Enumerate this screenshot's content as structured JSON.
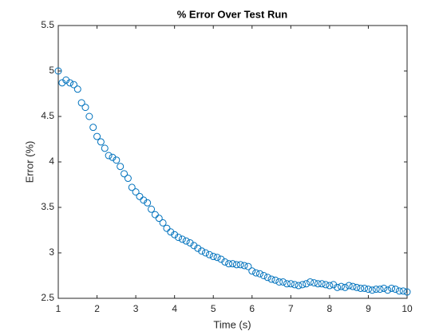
{
  "chart_data": {
    "type": "scatter",
    "title": "% Error Over Test Run",
    "xlabel": "Time (s)",
    "ylabel": "Error (%)",
    "color": "#0072bd",
    "x": [
      1,
      1.1,
      1.2,
      1.3,
      1.4,
      1.5,
      1.6,
      1.7,
      1.8,
      1.9,
      2,
      2.1,
      2.2,
      2.3,
      2.4,
      2.5,
      2.6,
      2.7,
      2.8,
      2.9,
      3,
      3.1,
      3.2,
      3.3,
      3.4,
      3.5,
      3.6,
      3.7,
      3.8,
      3.9,
      4,
      4.1,
      4.2,
      4.3,
      4.4,
      4.5,
      4.6,
      4.7,
      4.8,
      4.9,
      5,
      5.1,
      5.2,
      5.3,
      5.4,
      5.5,
      5.6,
      5.7,
      5.8,
      5.9,
      6,
      6.1,
      6.2,
      6.3,
      6.4,
      6.5,
      6.6,
      6.7,
      6.8,
      6.9,
      7,
      7.1,
      7.2,
      7.3,
      7.4,
      7.5,
      7.6,
      7.7,
      7.8,
      7.9,
      8,
      8.1,
      8.2,
      8.3,
      8.4,
      8.5,
      8.6,
      8.7,
      8.8,
      8.9,
      9,
      9.1,
      9.2,
      9.3,
      9.4,
      9.5,
      9.6,
      9.7,
      9.8,
      9.9,
      10
    ],
    "values": [
      5.0,
      4.87,
      4.9,
      4.87,
      4.85,
      4.8,
      4.65,
      4.6,
      4.5,
      4.38,
      4.28,
      4.22,
      4.15,
      4.07,
      4.05,
      4.02,
      3.95,
      3.87,
      3.82,
      3.72,
      3.67,
      3.62,
      3.58,
      3.55,
      3.48,
      3.42,
      3.38,
      3.33,
      3.27,
      3.23,
      3.2,
      3.17,
      3.15,
      3.13,
      3.11,
      3.08,
      3.05,
      3.02,
      3.0,
      2.98,
      2.96,
      2.95,
      2.93,
      2.9,
      2.88,
      2.88,
      2.87,
      2.87,
      2.86,
      2.85,
      2.8,
      2.78,
      2.77,
      2.75,
      2.73,
      2.71,
      2.7,
      2.68,
      2.68,
      2.66,
      2.66,
      2.65,
      2.64,
      2.65,
      2.66,
      2.68,
      2.67,
      2.66,
      2.66,
      2.65,
      2.64,
      2.65,
      2.62,
      2.63,
      2.62,
      2.64,
      2.63,
      2.62,
      2.61,
      2.61,
      2.6,
      2.59,
      2.6,
      2.6,
      2.61,
      2.59,
      2.61,
      2.6,
      2.58,
      2.58,
      2.57
    ],
    "xlim": [
      1,
      10
    ],
    "xticks": [
      1,
      2,
      3,
      4,
      5,
      6,
      7,
      8,
      9,
      10
    ],
    "ylim": [
      2.5,
      5.5
    ],
    "yticks": [
      2.5,
      3,
      3.5,
      4,
      4.5,
      5,
      5.5
    ]
  }
}
